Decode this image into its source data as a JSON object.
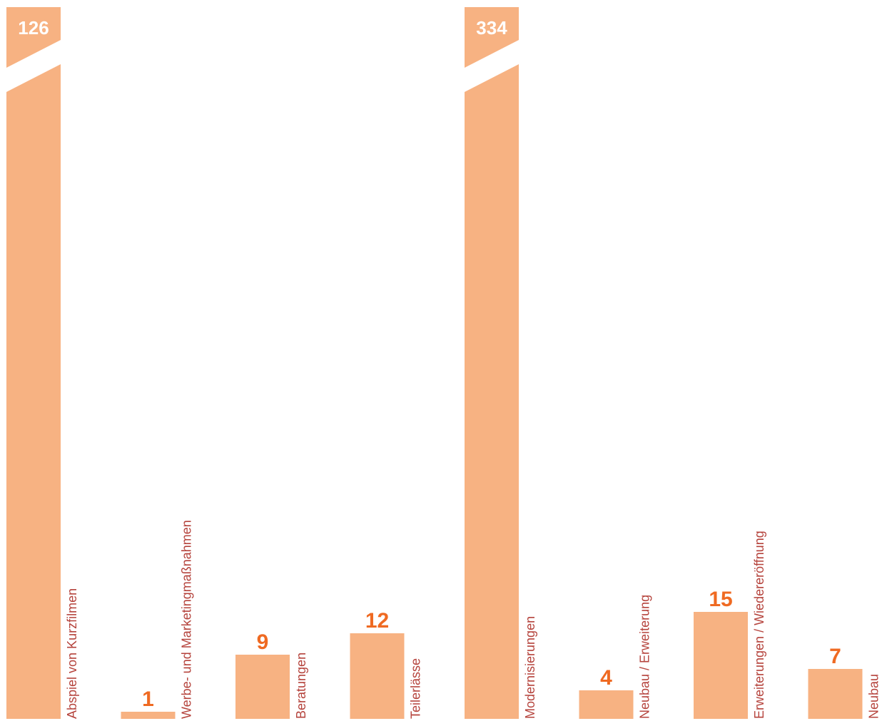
{
  "chart_data": {
    "type": "bar",
    "categories": [
      "Abspiel von Kurzfilmen",
      "Werbe- und Marketingmaßnahmen",
      "Beratungen",
      "Teilerlässe",
      "Modernisierungen",
      "Neubau / Erweiterung",
      "Erweiterungen / Wiedereröffnung",
      "Neubau"
    ],
    "values": [
      126,
      1,
      9,
      12,
      334,
      4,
      15,
      7
    ],
    "value_labels": [
      "126",
      "1",
      "9",
      "12",
      "334",
      "4",
      "15",
      "7"
    ],
    "broken_axis_categories": [
      0,
      4
    ],
    "grid": false,
    "legend": "none",
    "title": "",
    "xlabel": "",
    "ylabel": ""
  },
  "colors": {
    "bar": "#f7b282",
    "category_label": "#b5433c",
    "value_label": "#ef6a22",
    "value_label_on_bar": "#ffffff",
    "background": "#ffffff"
  }
}
